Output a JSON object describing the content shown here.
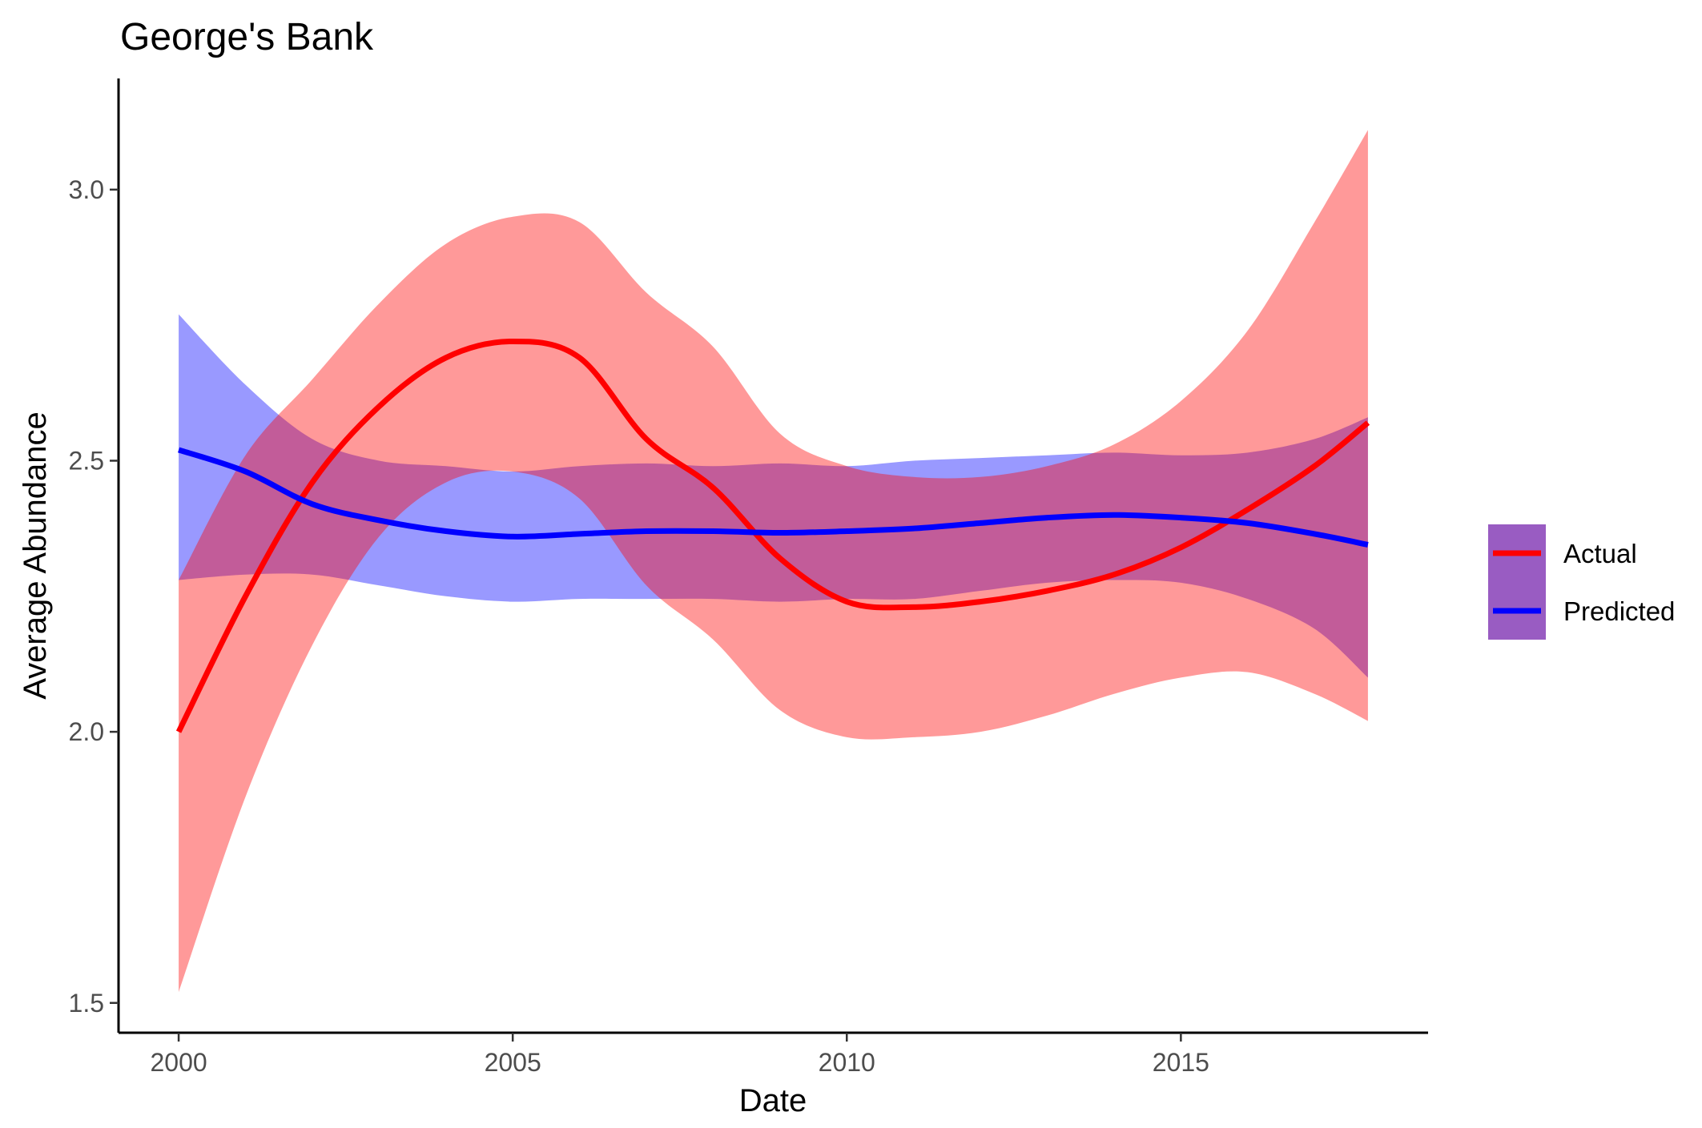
{
  "chart_data": {
    "type": "line",
    "title": "George's Bank",
    "xlabel": "Date",
    "ylabel": "Average Abundance",
    "xlim": [
      1999.1,
      2018.7
    ],
    "ylim": [
      1.445,
      3.205
    ],
    "x_ticks": [
      2000,
      2005,
      2010,
      2015
    ],
    "y_ticks": [
      1.5,
      2.0,
      2.5,
      3.0
    ],
    "y_tick_labels": [
      "1.5",
      "2.0",
      "2.5",
      "3.0"
    ],
    "grid": false,
    "legend_position": "right",
    "series": [
      {
        "name": "Actual",
        "color": "#ff0000",
        "band_color": "#ff9999",
        "x": [
          2000,
          2001,
          2002,
          2003,
          2004,
          2005,
          2006,
          2007,
          2008,
          2009,
          2010,
          2011,
          2012,
          2013,
          2014,
          2015,
          2016,
          2017,
          2017.8
        ],
        "y": [
          2.0,
          2.25,
          2.46,
          2.6,
          2.69,
          2.72,
          2.69,
          2.54,
          2.45,
          2.32,
          2.24,
          2.23,
          2.24,
          2.26,
          2.29,
          2.34,
          2.41,
          2.49,
          2.57
        ],
        "lower": [
          1.52,
          1.88,
          2.16,
          2.36,
          2.46,
          2.48,
          2.43,
          2.27,
          2.17,
          2.04,
          1.99,
          1.99,
          2.0,
          2.03,
          2.07,
          2.1,
          2.11,
          2.07,
          2.02
        ],
        "upper": [
          2.28,
          2.51,
          2.65,
          2.79,
          2.9,
          2.95,
          2.94,
          2.81,
          2.71,
          2.55,
          2.49,
          2.47,
          2.47,
          2.49,
          2.53,
          2.61,
          2.74,
          2.94,
          3.11
        ]
      },
      {
        "name": "Predicted",
        "color": "#0000ff",
        "band_color": "#9999ff",
        "x": [
          2000,
          2001,
          2002,
          2003,
          2004,
          2005,
          2006,
          2007,
          2008,
          2009,
          2010,
          2011,
          2012,
          2013,
          2014,
          2015,
          2016,
          2017,
          2017.8
        ],
        "y": [
          2.52,
          2.48,
          2.42,
          2.39,
          2.37,
          2.36,
          2.365,
          2.37,
          2.37,
          2.367,
          2.37,
          2.375,
          2.385,
          2.395,
          2.4,
          2.395,
          2.385,
          2.365,
          2.345
        ],
        "lower": [
          2.28,
          2.29,
          2.29,
          2.27,
          2.25,
          2.24,
          2.245,
          2.245,
          2.245,
          2.24,
          2.245,
          2.245,
          2.26,
          2.275,
          2.28,
          2.275,
          2.245,
          2.19,
          2.1
        ],
        "upper": [
          2.77,
          2.64,
          2.54,
          2.5,
          2.49,
          2.48,
          2.49,
          2.495,
          2.49,
          2.495,
          2.49,
          2.5,
          2.505,
          2.51,
          2.515,
          2.51,
          2.515,
          2.54,
          2.58
        ]
      }
    ]
  }
}
